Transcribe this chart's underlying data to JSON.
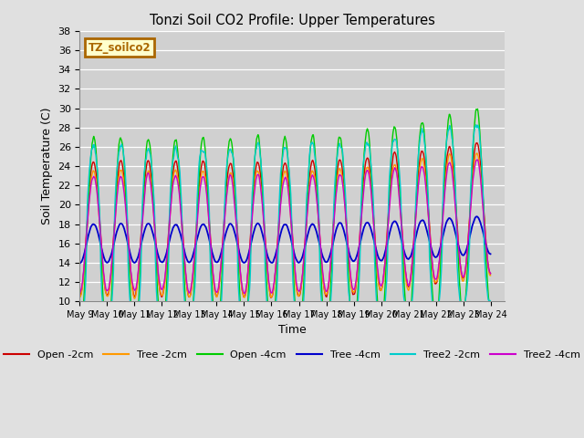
{
  "title": "Tonzi Soil CO2 Profile: Upper Temperatures",
  "xlabel": "Time",
  "ylabel": "Soil Temperature (C)",
  "ylim": [
    10,
    38
  ],
  "xlim_min": 0,
  "xlim_max": 15.5,
  "background_color": "#e0e0e0",
  "plot_bg_color": "#d0d0d0",
  "legend_label": "TZ_soilco2",
  "legend_bg": "#ffffcc",
  "legend_border": "#aa6600",
  "series_colors": {
    "Open -2cm": "#cc0000",
    "Tree -2cm": "#ff9900",
    "Open -4cm": "#00cc00",
    "Tree -4cm": "#0000cc",
    "Tree2 -2cm": "#00cccc",
    "Tree2 -4cm": "#cc00cc"
  },
  "xtick_labels": [
    "May 9",
    "May 10",
    "May 11",
    "May 12",
    "May 13",
    "May 14",
    "May 15",
    "May 16",
    "May 17",
    "May 18",
    "May 19",
    "May 20",
    "May 21",
    "May 22",
    "May 23",
    "May 24"
  ],
  "ytick_positions": [
    10,
    12,
    14,
    16,
    18,
    20,
    22,
    24,
    26,
    28,
    30,
    32,
    34,
    36,
    38
  ]
}
